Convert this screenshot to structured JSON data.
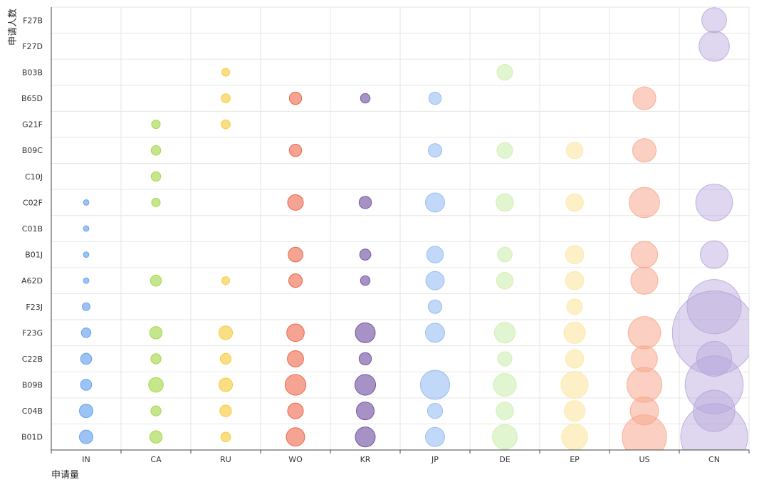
{
  "chart_data": {
    "type": "scatter",
    "subtype": "bubble",
    "xlabel": "申请量",
    "ylabel": "申请人数",
    "grid": true,
    "x_categories": [
      "IN",
      "CA",
      "RU",
      "WO",
      "KR",
      "JP",
      "DE",
      "EP",
      "US",
      "CN"
    ],
    "y_categories": [
      "B01D",
      "C04B",
      "B09B",
      "C22B",
      "F23G",
      "F23J",
      "A62D",
      "B01J",
      "C01B",
      "C02F",
      "C10J",
      "B09C",
      "G21F",
      "B65D",
      "B03B",
      "F27D",
      "F27B"
    ],
    "series": [
      {
        "x": "IN",
        "color": "#5b9bef",
        "fill_opacity": 0.6,
        "points": {
          "B01D": 3,
          "C04B": 3,
          "B09B": 2,
          "C22B": 2,
          "F23G": 1.5,
          "F23J": 1,
          "A62D": 0.5,
          "B01J": 0.5,
          "C01B": 0.5,
          "C02F": 0.5
        }
      },
      {
        "x": "CA",
        "color": "#9fd63f",
        "fill_opacity": 0.6,
        "points": {
          "B01D": 2.5,
          "C04B": 1.7,
          "B09B": 3.5,
          "C22B": 1.7,
          "F23G": 2.5,
          "A62D": 2,
          "C02F": 1.2,
          "C10J": 1.5,
          "B09C": 1.5,
          "G21F": 1.2
        }
      },
      {
        "x": "RU",
        "color": "#f6c830",
        "fill_opacity": 0.6,
        "points": {
          "B01D": 1.5,
          "C04B": 2.2,
          "B09B": 3,
          "C22B": 1.9,
          "F23G": 3,
          "A62D": 1,
          "G21F": 1.3,
          "B65D": 1.3,
          "B03B": 1
        }
      },
      {
        "x": "WO",
        "color": "#ec5a3a",
        "fill_opacity": 0.55,
        "points": {
          "B01D": 5.5,
          "C04B": 4,
          "B09B": 7,
          "C22B": 4.3,
          "F23G": 5,
          "A62D": 3,
          "B01J": 3.5,
          "C02F": 4,
          "B09C": 2.5,
          "B65D": 2.5
        }
      },
      {
        "x": "KR",
        "color": "#6a4a9e",
        "fill_opacity": 0.6,
        "points": {
          "B01D": 6.5,
          "C04B": 5.2,
          "B09B": 7,
          "C22B": 2.5,
          "F23G": 6.5,
          "A62D": 1.5,
          "B01J": 2,
          "C02F": 2.5,
          "B65D": 1.5
        }
      },
      {
        "x": "JP",
        "color": "#8fb8f2",
        "fill_opacity": 0.55,
        "points": {
          "B01D": 6,
          "C04B": 3.7,
          "B09B": 14,
          "F23G": 6,
          "F23J": 3,
          "A62D": 5.5,
          "B01J": 4.5,
          "C02F": 6,
          "B09C": 3,
          "B65D": 2.5
        }
      },
      {
        "x": "DE",
        "color": "#cdeeb0",
        "fill_opacity": 0.6,
        "points": {
          "B01D": 10,
          "C04B": 5,
          "B09B": 8.5,
          "C22B": 3.3,
          "F23G": 7,
          "A62D": 4.5,
          "B01J": 3.5,
          "C02F": 5,
          "B09C": 4,
          "B03B": 4
        }
      },
      {
        "x": "EP",
        "color": "#fce8a8",
        "fill_opacity": 0.65,
        "points": {
          "B01D": 11,
          "C04B": 7,
          "B09B": 12,
          "C22B": 5.5,
          "F23G": 7.5,
          "F23J": 4,
          "A62D": 5.5,
          "B01J": 5.5,
          "C02F": 5,
          "B09C": 4.5
        }
      },
      {
        "x": "US",
        "color": "#f8a990",
        "fill_opacity": 0.55,
        "points": {
          "B01D": 32,
          "C04B": 13,
          "B09B": 20,
          "C22B": 11,
          "F23G": 17,
          "A62D": 12,
          "B01J": 11.5,
          "C02F": 15,
          "B09C": 9,
          "B65D": 8.5
        }
      },
      {
        "x": "CN",
        "color": "#b8a6dc",
        "fill_opacity": 0.45,
        "points": {
          "B01D": 73,
          "C04B": 28,
          "B09B": 55,
          "C22B": 20,
          "F23G": 114,
          "F23J": 48,
          "B01J": 12.5,
          "C02F": 22,
          "F27D": 15,
          "F27B": 10
        }
      }
    ]
  }
}
